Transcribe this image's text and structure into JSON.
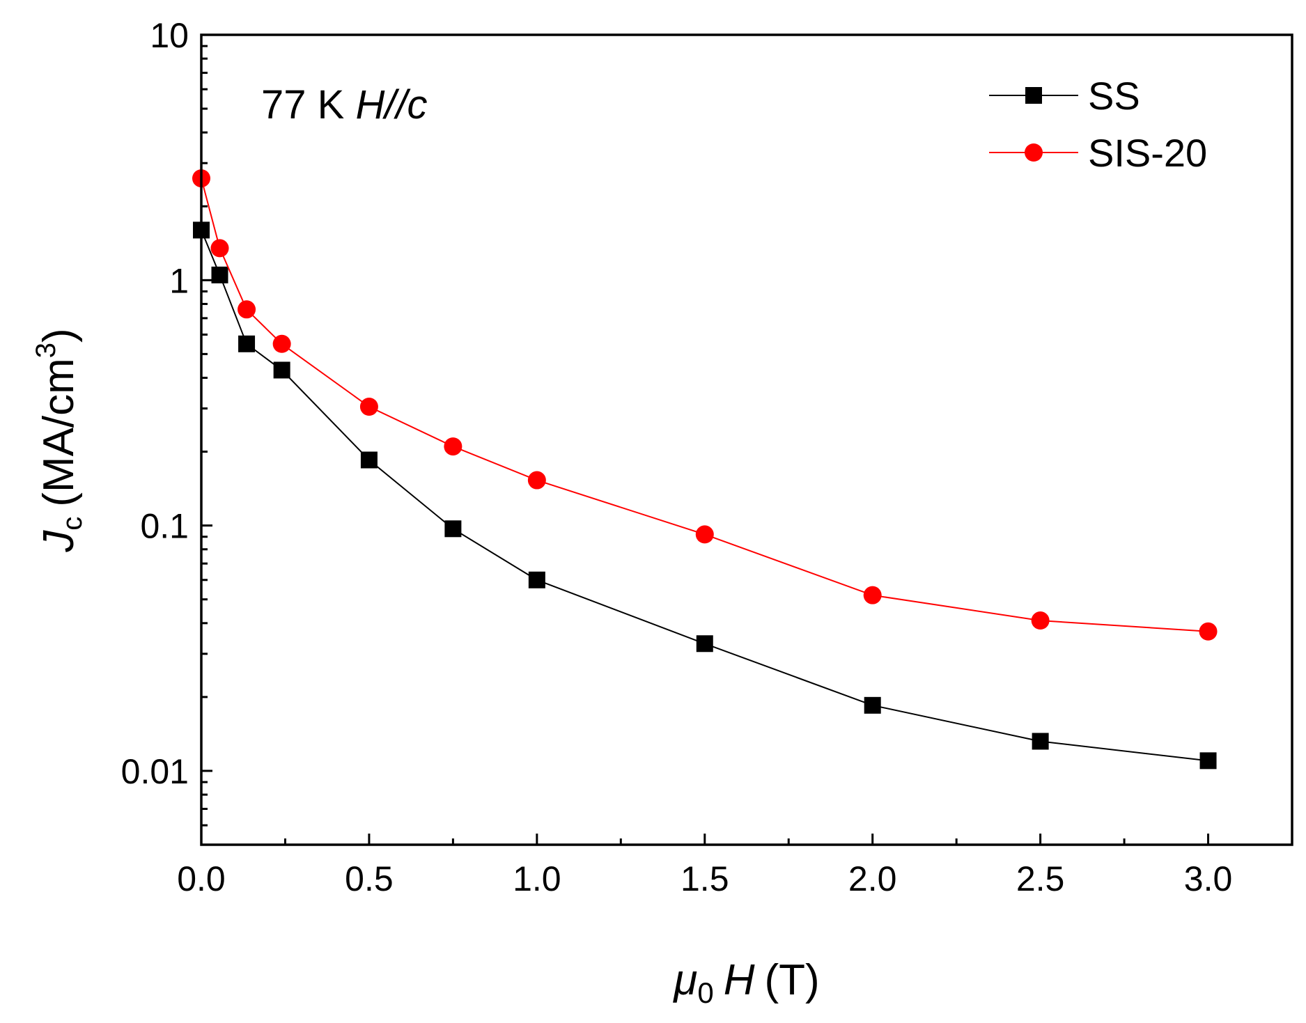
{
  "chart_data": {
    "type": "line",
    "x_axis": {
      "label_symbol": "μ",
      "label_subscript": "0",
      "label_var": "H",
      "label_unit": "(T)",
      "lim": [
        0.0,
        3.25
      ],
      "ticks": [
        0.0,
        0.5,
        1.0,
        1.5,
        2.0,
        2.5,
        3.0
      ],
      "tick_labels": [
        "0.0",
        "0.5",
        "1.0",
        "1.5",
        "2.0",
        "2.5",
        "3.0"
      ]
    },
    "y_axis": {
      "label_var": "J",
      "label_subscript": "c",
      "label_unit": "(MA/cm",
      "label_superscript": "3",
      "label_close": ")",
      "scale": "log",
      "lim": [
        0.005,
        10
      ],
      "ticks": [
        0.01,
        0.1,
        1,
        10
      ],
      "tick_labels": [
        "0.01",
        "0.1",
        "1",
        "10"
      ]
    },
    "annotation": {
      "prefix": "77 K ",
      "italic": "H//c"
    },
    "legend": {
      "position": "top-right"
    },
    "series": [
      {
        "name": "SS",
        "color": "#000000",
        "marker": "square",
        "points": [
          [
            0.0,
            1.6
          ],
          [
            0.055,
            1.05
          ],
          [
            0.135,
            0.55
          ],
          [
            0.24,
            0.43
          ],
          [
            0.5,
            0.185
          ],
          [
            0.75,
            0.097
          ],
          [
            1.0,
            0.06
          ],
          [
            1.5,
            0.033
          ],
          [
            2.0,
            0.0185
          ],
          [
            2.5,
            0.0132
          ],
          [
            3.0,
            0.011
          ]
        ]
      },
      {
        "name": "SIS-20",
        "color": "#ff0000",
        "marker": "circle",
        "points": [
          [
            0.0,
            2.6
          ],
          [
            0.055,
            1.35
          ],
          [
            0.135,
            0.76
          ],
          [
            0.24,
            0.55
          ],
          [
            0.5,
            0.305
          ],
          [
            0.75,
            0.21
          ],
          [
            1.0,
            0.153
          ],
          [
            1.5,
            0.092
          ],
          [
            2.0,
            0.052
          ],
          [
            2.5,
            0.041
          ],
          [
            3.0,
            0.037
          ]
        ]
      }
    ]
  }
}
